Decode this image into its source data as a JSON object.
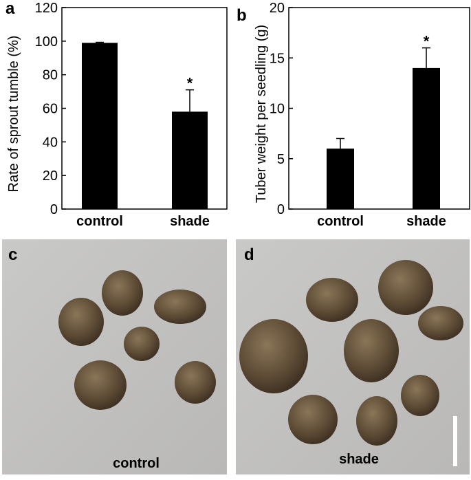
{
  "chart_data": [
    {
      "type": "bar",
      "panel_label": "a",
      "ylabel": "Rate of sprout tumble (%)",
      "categories": [
        "control",
        "shade"
      ],
      "values": [
        99,
        58
      ],
      "errors": [
        0.3,
        13
      ],
      "value_annotations": [
        null,
        "*"
      ],
      "color": "#000000",
      "ylim": [
        0,
        120
      ],
      "yticks": [
        0,
        20,
        40,
        60,
        80,
        100,
        120
      ],
      "grid": false
    },
    {
      "type": "bar",
      "panel_label": "b",
      "ylabel": "Tuber weight per seedling (g)",
      "categories": [
        "control",
        "shade"
      ],
      "values": [
        6,
        14
      ],
      "errors": [
        1,
        2
      ],
      "value_annotations": [
        null,
        "*"
      ],
      "color": "#000000",
      "ylim": [
        0,
        20
      ],
      "yticks": [
        0,
        5,
        10,
        15,
        20
      ],
      "grid": false
    }
  ],
  "photos": [
    {
      "panel_label": "c",
      "caption": "control"
    },
    {
      "panel_label": "d",
      "caption": "shade"
    }
  ]
}
